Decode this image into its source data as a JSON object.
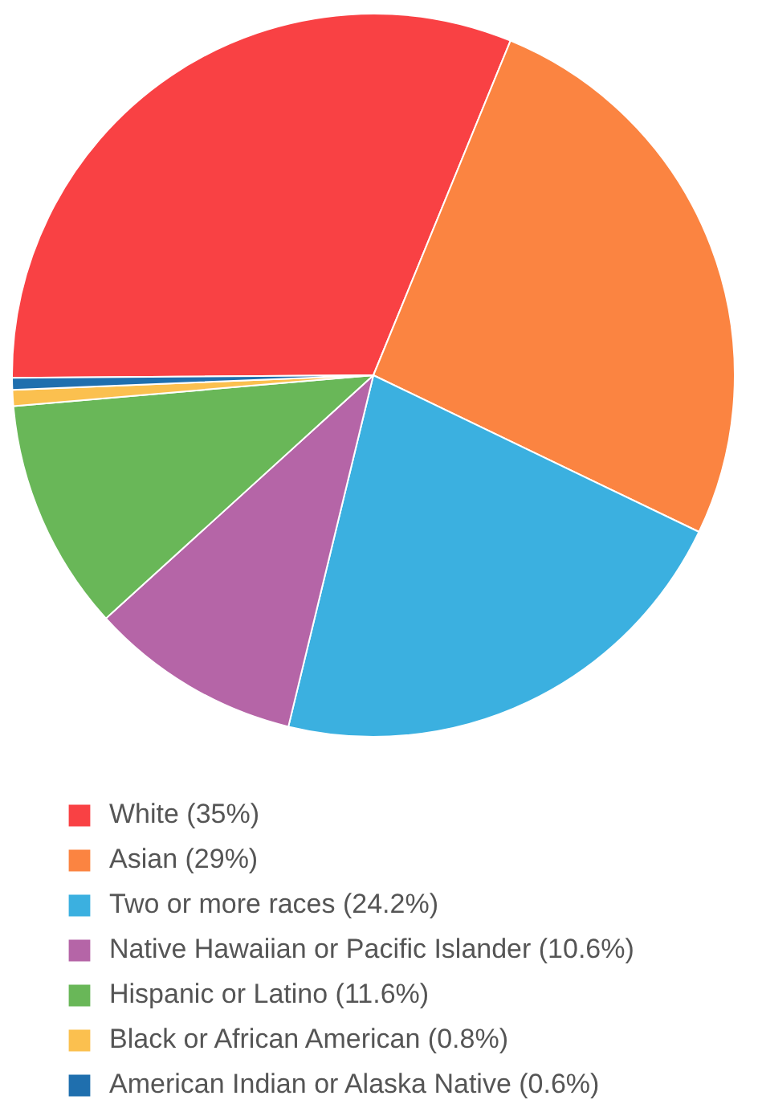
{
  "chart_data": {
    "type": "pie",
    "categories": [
      "White (35%)",
      "Asian (29%)",
      "Two or more races (24.2%)",
      "Native Hawaiian or Pacific Islander (10.6%)",
      "Hispanic or Latino (11.6%)",
      "Black or African American (0.8%)",
      "American Indian or Alaska Native (0.6%)"
    ],
    "values": [
      35,
      29,
      24.2,
      10.6,
      11.6,
      0.8,
      0.6
    ],
    "colors": [
      "#f94144",
      "#fb8441",
      "#3bb0e0",
      "#b565a7",
      "#69b758",
      "#fbc04f",
      "#1f6fae"
    ],
    "legend": "bottom"
  }
}
